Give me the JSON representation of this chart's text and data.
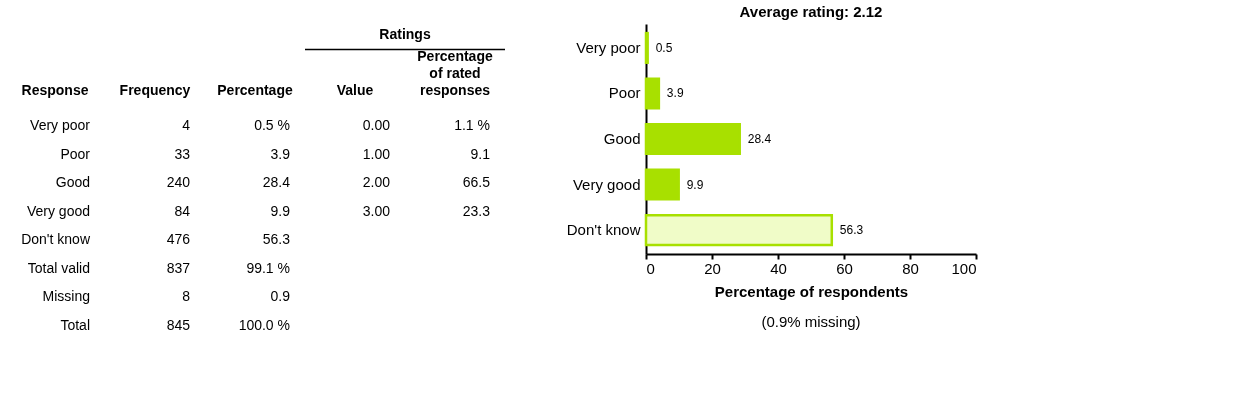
{
  "chart_data": [
    {
      "type": "other",
      "title": "Ratings",
      "categories": [
        "Response",
        "Frequency",
        "Percentage",
        "Value",
        "Percentage\nof rated\nresponses"
      ],
      "cell_labels": [
        [
          "Very poor",
          "4",
          "0.5 %",
          "0.00",
          "1.1 %"
        ],
        [
          "Poor",
          "33",
          "3.9",
          "1.00",
          "9.1"
        ],
        [
          "Good",
          "240",
          "28.4",
          "2.00",
          "66.5"
        ],
        [
          "Very good",
          "84",
          "9.9",
          "3.00",
          "23.3"
        ],
        [
          "Don't know",
          "476",
          "56.3",
          null,
          null
        ],
        [
          "Total valid",
          "837",
          "99.1 %",
          null,
          null
        ],
        [
          "Missing",
          "8",
          "0.9",
          null,
          null
        ],
        [
          "Total",
          "845",
          "100.0 %",
          null,
          null
        ]
      ]
    },
    {
      "type": "bar",
      "orientation": "horizontal",
      "title": "Average rating: 2.12",
      "xlabel": "Percentage of respondents",
      "categories": [
        "Very poor",
        "Poor",
        "Good",
        "Very good",
        "Don't know"
      ],
      "values": [
        0.5,
        3.9,
        28.4,
        9.9,
        56.3
      ],
      "colors": [
        "#a8e000",
        "#a8e000",
        "#a8e000",
        "#a8e000",
        "#f0fcc8"
      ],
      "xlim": [
        0,
        100
      ],
      "xticks": [
        0,
        20,
        40,
        60,
        80,
        100
      ],
      "data_labels": true,
      "grid": false,
      "annotations": [
        "(0.9% missing)"
      ]
    }
  ]
}
